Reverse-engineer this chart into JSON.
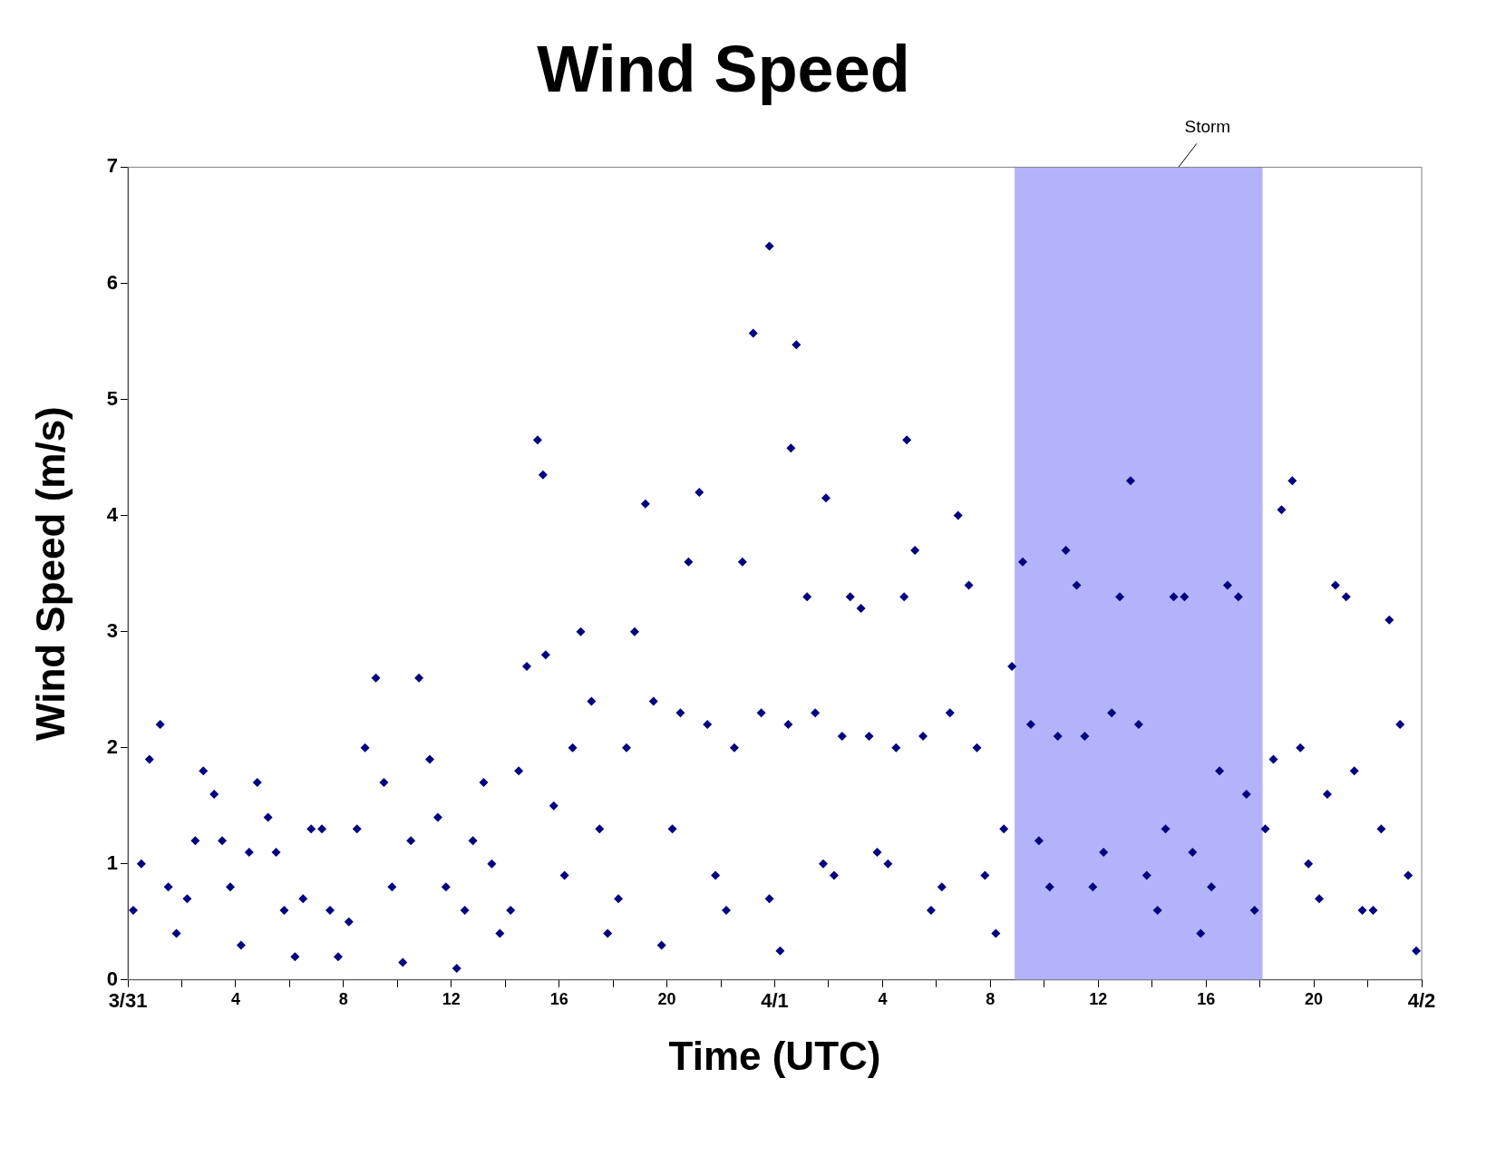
{
  "chart_data": {
    "type": "scatter",
    "title": "Wind Speed",
    "xlabel": "Time (UTC)",
    "ylabel": "Wind Speed (m/s)",
    "xlim": [
      "--03-31T00:00",
      "--04-02T00:00"
    ],
    "ylim": [
      0,
      7
    ],
    "xticks": [
      {
        "value": "--03-31T00:00",
        "label": "3/31"
      },
      {
        "value": "--03-31T02:00",
        "label": null
      },
      {
        "value": "--03-31T04:00",
        "label": "4"
      },
      {
        "value": "--03-31T06:00",
        "label": null
      },
      {
        "value": "--03-31T08:00",
        "label": "8"
      },
      {
        "value": "--03-31T10:00",
        "label": null
      },
      {
        "value": "--03-31T12:00",
        "label": "12"
      },
      {
        "value": "--03-31T14:00",
        "label": null
      },
      {
        "value": "--03-31T16:00",
        "label": "16"
      },
      {
        "value": "--03-31T18:00",
        "label": null
      },
      {
        "value": "--03-31T20:00",
        "label": "20"
      },
      {
        "value": "--03-31T22:00",
        "label": null
      },
      {
        "value": "--04-01T00:00",
        "label": "4/1"
      },
      {
        "value": "--04-01T02:00",
        "label": null
      },
      {
        "value": "--04-01T04:00",
        "label": "4"
      },
      {
        "value": "--04-01T06:00",
        "label": null
      },
      {
        "value": "--04-01T08:00",
        "label": "8"
      },
      {
        "value": "--04-01T10:00",
        "label": null
      },
      {
        "value": "--04-01T12:00",
        "label": "12"
      },
      {
        "value": "--04-01T14:00",
        "label": null
      },
      {
        "value": "--04-01T16:00",
        "label": "16"
      },
      {
        "value": "--04-01T18:00",
        "label": null
      },
      {
        "value": "--04-01T20:00",
        "label": "20"
      },
      {
        "value": "--04-01T22:00",
        "label": null
      },
      {
        "value": "--04-02T00:00",
        "label": "4/2"
      }
    ],
    "yticks": [
      0,
      1,
      2,
      3,
      4,
      5,
      6,
      7
    ],
    "grid": false,
    "legend": false,
    "marker": "diamond",
    "bands": [
      {
        "axis": "x",
        "from": "--04-01T08:54",
        "to": "--04-01T18:06",
        "label": "Storm",
        "color": "#b3b3fb"
      }
    ],
    "series": [
      {
        "color": "#000080",
        "x": [
          "--03-31T00:12",
          "--03-31T00:30",
          "--03-31T00:48",
          "--03-31T01:12",
          "--03-31T01:30",
          "--03-31T01:48",
          "--03-31T02:12",
          "--03-31T02:30",
          "--03-31T02:48",
          "--03-31T03:12",
          "--03-31T03:30",
          "--03-31T03:48",
          "--03-31T04:12",
          "--03-31T04:30",
          "--03-31T04:48",
          "--03-31T05:12",
          "--03-31T05:30",
          "--03-31T05:48",
          "--03-31T06:12",
          "--03-31T06:30",
          "--03-31T06:48",
          "--03-31T07:12",
          "--03-31T07:30",
          "--03-31T07:48",
          "--03-31T08:12",
          "--03-31T08:30",
          "--03-31T08:48",
          "--03-31T09:12",
          "--03-31T09:30",
          "--03-31T09:48",
          "--03-31T10:12",
          "--03-31T10:30",
          "--03-31T10:48",
          "--03-31T11:12",
          "--03-31T11:30",
          "--03-31T11:48",
          "--03-31T12:12",
          "--03-31T12:30",
          "--03-31T12:48",
          "--03-31T13:12",
          "--03-31T13:30",
          "--03-31T13:48",
          "--03-31T14:12",
          "--03-31T14:30",
          "--03-31T14:48",
          "--03-31T15:12",
          "--03-31T15:30",
          "--03-31T15:48",
          "--03-31T16:12",
          "--03-31T16:30",
          "--03-31T16:48",
          "--03-31T17:12",
          "--03-31T17:30",
          "--03-31T17:48",
          "--03-31T18:12",
          "--03-31T18:30",
          "--03-31T18:48",
          "--03-31T19:12",
          "--03-31T19:30",
          "--03-31T19:48",
          "--03-31T20:12",
          "--03-31T20:30",
          "--03-31T20:48",
          "--03-31T21:12",
          "--03-31T21:30",
          "--03-31T21:48",
          "--03-31T22:12",
          "--03-31T22:30",
          "--03-31T22:48",
          "--03-31T23:12",
          "--03-31T23:30",
          "--03-31T23:48",
          "--04-01T00:12",
          "--04-01T00:30",
          "--04-01T00:48",
          "--04-01T01:12",
          "--04-01T01:30",
          "--04-01T01:48",
          "--04-01T02:12",
          "--04-01T02:30",
          "--04-01T02:48",
          "--04-01T03:12",
          "--04-01T03:30",
          "--04-01T03:48",
          "--04-01T04:12",
          "--04-01T04:30",
          "--04-01T04:48",
          "--04-01T05:12",
          "--04-01T05:30",
          "--04-01T05:48",
          "--04-01T06:12",
          "--04-01T06:30",
          "--04-01T06:48",
          "--04-01T07:12",
          "--04-01T07:30",
          "--04-01T07:48",
          "--04-01T08:12",
          "--04-01T08:30",
          "--04-01T08:48",
          "--04-01T09:12",
          "--04-01T09:30",
          "--04-01T09:48",
          "--04-01T10:12",
          "--04-01T10:30",
          "--04-01T10:48",
          "--04-01T11:12",
          "--04-01T11:30",
          "--04-01T11:48",
          "--04-01T12:12",
          "--04-01T12:30",
          "--04-01T12:48",
          "--04-01T13:12",
          "--04-01T13:30",
          "--04-01T13:48",
          "--04-01T14:12",
          "--04-01T14:30",
          "--04-01T14:48",
          "--04-01T15:12",
          "--04-01T15:30",
          "--04-01T15:48",
          "--04-01T16:12",
          "--04-01T16:30",
          "--04-01T16:48",
          "--04-01T17:12",
          "--04-01T17:30",
          "--04-01T17:48",
          "--04-01T18:12",
          "--04-01T18:30",
          "--04-01T18:48",
          "--04-01T19:12",
          "--04-01T19:30",
          "--04-01T19:48",
          "--04-01T20:12",
          "--04-01T20:30",
          "--04-01T20:48",
          "--04-01T21:12",
          "--04-01T21:30",
          "--04-01T21:48",
          "--04-01T22:12",
          "--04-01T22:30",
          "--04-01T22:48",
          "--04-01T23:12",
          "--04-01T23:30",
          "--04-01T23:48",
          "--03-31T23:48",
          "--04-01T00:36",
          "--04-01T01:54",
          "--04-01T04:54",
          "--03-31T15:24"
        ],
        "values": [
          0.6,
          1.0,
          1.9,
          2.2,
          0.8,
          0.4,
          0.7,
          1.2,
          1.8,
          1.6,
          1.2,
          0.8,
          0.3,
          1.1,
          1.7,
          1.4,
          1.1,
          0.6,
          0.2,
          0.7,
          1.3,
          1.3,
          0.6,
          0.2,
          0.5,
          1.3,
          2.0,
          2.6,
          1.7,
          0.8,
          0.15,
          1.2,
          2.6,
          1.9,
          1.4,
          0.8,
          0.1,
          0.6,
          1.2,
          1.7,
          1.0,
          0.4,
          0.6,
          1.8,
          2.7,
          4.65,
          2.8,
          1.5,
          0.9,
          2.0,
          3.0,
          2.4,
          1.3,
          0.4,
          0.7,
          2.0,
          3.0,
          4.1,
          2.4,
          0.3,
          1.3,
          2.3,
          3.6,
          4.2,
          2.2,
          0.9,
          0.6,
          2.0,
          3.6,
          5.57,
          2.3,
          0.7,
          0.25,
          2.2,
          5.47,
          3.3,
          2.3,
          1.0,
          0.9,
          2.1,
          3.3,
          3.2,
          2.1,
          1.1,
          1.0,
          2.0,
          3.3,
          3.7,
          2.1,
          0.6,
          0.8,
          2.3,
          4.0,
          3.4,
          2.0,
          0.9,
          0.4,
          1.3,
          2.7,
          3.6,
          2.2,
          1.2,
          0.8,
          2.1,
          3.7,
          3.4,
          2.1,
          0.8,
          1.1,
          2.3,
          3.3,
          4.3,
          2.2,
          0.9,
          0.6,
          1.3,
          3.3,
          3.3,
          1.1,
          0.4,
          0.8,
          1.8,
          3.4,
          3.3,
          1.6,
          0.6,
          1.3,
          1.9,
          4.05,
          4.3,
          2.0,
          1.0,
          0.7,
          1.6,
          3.4,
          3.3,
          1.8,
          0.6,
          0.6,
          1.3,
          3.1,
          2.2,
          0.9,
          0.25,
          6.32,
          4.58,
          4.15,
          4.65,
          4.35
        ]
      }
    ]
  }
}
